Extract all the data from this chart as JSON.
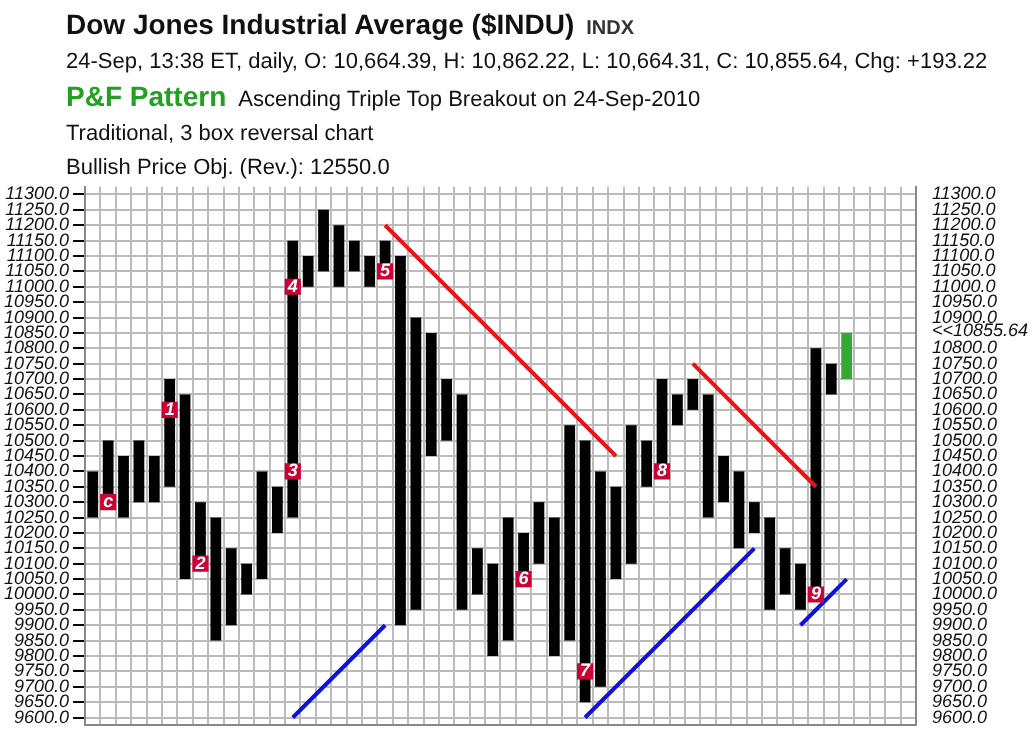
{
  "chart_data": {
    "type": "bar",
    "title": "Dow Jones Industrial Average ($INDU)",
    "subtitle": "24-Sep, 13:38 ET, daily, O: 10,664.39, H: 10,862.22, L: 10,664.31, C: 10,855.64, Chg: +193.22",
    "annotations": [
      "INDX",
      "P&F Pattern",
      "Ascending Triple Top Breakout on 24-Sep-2010",
      "Traditional, 3 box reversal chart",
      "Bullish Price Obj. (Rev.): 12550.0"
    ],
    "categories": [
      null,
      null,
      null,
      null,
      null,
      null,
      null,
      null,
      null,
      null,
      null,
      null,
      null,
      null,
      null,
      null,
      null,
      null,
      null,
      null,
      null,
      null,
      null,
      null,
      null,
      null,
      null,
      null,
      null,
      null,
      null,
      null,
      null,
      null,
      null,
      null,
      null,
      null,
      null,
      null,
      null,
      null,
      null,
      null,
      null,
      null,
      null,
      null,
      null,
      null,
      null,
      null,
      null,
      null
    ],
    "series": [
      {
        "color": "#000000",
        "colors": [
          "#000000",
          "#000000",
          "#000000",
          "#000000",
          "#000000",
          "#000000",
          "#000000",
          "#000000",
          "#000000",
          "#000000",
          "#000000",
          "#000000",
          "#000000",
          "#000000",
          "#000000",
          "#000000",
          "#000000",
          "#000000",
          "#000000",
          "#000000",
          "#000000",
          "#000000",
          "#000000",
          "#000000",
          "#000000",
          "#000000",
          "#000000",
          "#000000",
          "#000000",
          "#000000",
          "#000000",
          "#000000",
          "#000000",
          "#000000",
          "#000000",
          "#000000",
          "#000000",
          "#000000",
          "#000000",
          "#000000",
          "#000000",
          "#000000",
          "#000000",
          "#000000",
          "#000000",
          "#000000",
          "#000000",
          "#000000",
          "#000000",
          "#33aa33",
          null,
          null,
          null,
          null
        ],
        "base": [
          null,
          10300,
          null,
          10300,
          null,
          10350,
          null,
          10100,
          null,
          9900,
          null,
          10050,
          null,
          10250,
          null,
          11050,
          null,
          11050,
          null,
          11050,
          null,
          9950,
          null,
          10500,
          null,
          10000,
          null,
          9850,
          null,
          10100,
          null,
          9850,
          null,
          9700,
          null,
          10100,
          null,
          10400,
          null,
          10600,
          null,
          10300,
          null,
          10200,
          null,
          10000,
          null,
          10000,
          null,
          10700,
          null,
          null,
          null,
          null
        ],
        "values": [
          null,
          200,
          null,
          200,
          null,
          350,
          null,
          200,
          null,
          250,
          null,
          350,
          null,
          900,
          null,
          200,
          null,
          100,
          null,
          100,
          null,
          950,
          null,
          200,
          null,
          150,
          null,
          400,
          null,
          200,
          null,
          700,
          null,
          700,
          null,
          450,
          null,
          300,
          null,
          100,
          null,
          150,
          null,
          100,
          null,
          150,
          null,
          800,
          null,
          150,
          null,
          null,
          null,
          null
        ]
      },
      {
        "color": "#000000",
        "base": [
          10250,
          null,
          10250,
          null,
          10300,
          null,
          10050,
          null,
          9850,
          null,
          10000,
          null,
          10200,
          null,
          11000,
          null,
          11000,
          null,
          11000,
          null,
          9900,
          null,
          10450,
          null,
          9950,
          null,
          9800,
          null,
          10050,
          null,
          9800,
          null,
          9650,
          null,
          10050,
          null,
          10350,
          null,
          10550,
          null,
          10250,
          null,
          10150,
          null,
          9950,
          null,
          9950,
          null,
          10650,
          null,
          null,
          null,
          null,
          null
        ],
        "values": [
          150,
          null,
          200,
          null,
          150,
          null,
          600,
          null,
          400,
          null,
          100,
          null,
          150,
          null,
          100,
          null,
          200,
          null,
          100,
          null,
          1200,
          null,
          400,
          null,
          700,
          null,
          300,
          null,
          150,
          null,
          450,
          null,
          850,
          null,
          300,
          null,
          150,
          null,
          100,
          null,
          400,
          null,
          250,
          null,
          300,
          null,
          150,
          null,
          100,
          null,
          null,
          null,
          null,
          null
        ]
      },
      {
        "type": "line",
        "color": "#ee1111",
        "values": [
          null,
          null,
          null,
          null,
          null,
          null,
          null,
          null,
          null,
          null,
          null,
          null,
          null,
          null,
          null,
          null,
          null,
          null,
          null,
          11200,
          null,
          null,
          null,
          null,
          null,
          null,
          null,
          null,
          null,
          null,
          null,
          null,
          null,
          null,
          10450,
          null,
          null,
          null,
          null,
          null,
          null,
          null,
          null,
          null,
          null,
          null,
          null,
          null,
          null,
          null,
          null,
          null,
          null,
          null
        ]
      },
      {
        "type": "line",
        "color": "#ee1111",
        "values": [
          null,
          null,
          null,
          null,
          null,
          null,
          null,
          null,
          null,
          null,
          null,
          null,
          null,
          null,
          null,
          null,
          null,
          null,
          null,
          null,
          null,
          null,
          null,
          null,
          null,
          null,
          null,
          null,
          null,
          null,
          null,
          null,
          null,
          null,
          null,
          null,
          null,
          null,
          null,
          10750,
          null,
          null,
          null,
          null,
          null,
          null,
          null,
          10350,
          null,
          null,
          null,
          null,
          null,
          null
        ]
      },
      {
        "type": "line",
        "color": "#1111dd",
        "values": [
          null,
          null,
          null,
          null,
          null,
          null,
          null,
          null,
          null,
          null,
          null,
          null,
          null,
          9600,
          null,
          null,
          null,
          null,
          null,
          9900,
          null,
          null,
          null,
          null,
          null,
          null,
          null,
          null,
          null,
          null,
          null,
          null,
          null,
          null,
          null,
          null,
          null,
          null,
          null,
          null,
          null,
          null,
          null,
          null,
          null,
          null,
          null,
          null,
          null,
          null,
          null,
          null,
          null,
          null
        ]
      },
      {
        "type": "line",
        "color": "#1111dd",
        "values": [
          null,
          null,
          null,
          null,
          null,
          null,
          null,
          null,
          null,
          null,
          null,
          null,
          null,
          null,
          null,
          null,
          null,
          null,
          null,
          null,
          null,
          null,
          null,
          null,
          null,
          null,
          null,
          null,
          null,
          null,
          null,
          null,
          9600,
          null,
          null,
          null,
          null,
          null,
          null,
          null,
          null,
          null,
          null,
          10150,
          null,
          null,
          null,
          null,
          null,
          null,
          null,
          null,
          null,
          null
        ]
      },
      {
        "type": "line",
        "color": "#1111dd",
        "values": [
          null,
          null,
          null,
          null,
          null,
          null,
          null,
          null,
          null,
          null,
          null,
          null,
          null,
          null,
          null,
          null,
          null,
          null,
          null,
          null,
          null,
          null,
          null,
          null,
          null,
          null,
          null,
          null,
          null,
          null,
          null,
          null,
          null,
          null,
          null,
          null,
          null,
          null,
          null,
          null,
          null,
          null,
          null,
          null,
          null,
          null,
          9900,
          null,
          null,
          10050,
          null,
          null,
          null,
          null
        ]
      },
      {
        "type": "scatter",
        "name": "c",
        "color": "#cc0033",
        "values": [
          null,
          10300,
          null,
          null,
          null,
          null,
          null,
          null,
          null,
          null,
          null,
          null,
          null,
          null,
          null,
          null,
          null,
          null,
          null,
          null,
          null,
          null,
          null,
          null,
          null,
          null,
          null,
          null,
          null,
          null,
          null,
          null,
          null,
          null,
          null,
          null,
          null,
          null,
          null,
          null,
          null,
          null,
          null,
          null,
          null,
          null,
          null,
          null,
          null,
          null,
          null,
          null,
          null,
          null
        ]
      },
      {
        "type": "scatter",
        "name": "1",
        "color": "#cc0033",
        "values": [
          null,
          null,
          null,
          null,
          null,
          10600,
          null,
          null,
          null,
          null,
          null,
          null,
          null,
          null,
          null,
          null,
          null,
          null,
          null,
          null,
          null,
          null,
          null,
          null,
          null,
          null,
          null,
          null,
          null,
          null,
          null,
          null,
          null,
          null,
          null,
          null,
          null,
          null,
          null,
          null,
          null,
          null,
          null,
          null,
          null,
          null,
          null,
          null,
          null,
          null,
          null,
          null,
          null,
          null
        ]
      },
      {
        "type": "scatter",
        "name": "2",
        "color": "#cc0033",
        "values": [
          null,
          null,
          null,
          null,
          null,
          null,
          null,
          10100,
          null,
          null,
          null,
          null,
          null,
          null,
          null,
          null,
          null,
          null,
          null,
          null,
          null,
          null,
          null,
          null,
          null,
          null,
          null,
          null,
          null,
          null,
          null,
          null,
          null,
          null,
          null,
          null,
          null,
          null,
          null,
          null,
          null,
          null,
          null,
          null,
          null,
          null,
          null,
          null,
          null,
          null,
          null,
          null,
          null,
          null
        ]
      },
      {
        "type": "scatter",
        "name": "3",
        "color": "#cc0033",
        "values": [
          null,
          null,
          null,
          null,
          null,
          null,
          null,
          null,
          null,
          null,
          null,
          null,
          null,
          10400,
          null,
          null,
          null,
          null,
          null,
          null,
          null,
          null,
          null,
          null,
          null,
          null,
          null,
          null,
          null,
          null,
          null,
          null,
          null,
          null,
          null,
          null,
          null,
          null,
          null,
          null,
          null,
          null,
          null,
          null,
          null,
          null,
          null,
          null,
          null,
          null,
          null,
          null,
          null,
          null
        ]
      },
      {
        "type": "scatter",
        "name": "4",
        "color": "#cc0033",
        "values": [
          null,
          null,
          null,
          null,
          null,
          null,
          null,
          null,
          null,
          null,
          null,
          null,
          null,
          11000,
          null,
          null,
          null,
          null,
          null,
          null,
          null,
          null,
          null,
          null,
          null,
          null,
          null,
          null,
          null,
          null,
          null,
          null,
          null,
          null,
          null,
          null,
          null,
          null,
          null,
          null,
          null,
          null,
          null,
          null,
          null,
          null,
          null,
          null,
          null,
          null,
          null,
          null,
          null,
          null
        ]
      },
      {
        "type": "scatter",
        "name": "5",
        "color": "#cc0033",
        "values": [
          null,
          null,
          null,
          null,
          null,
          null,
          null,
          null,
          null,
          null,
          null,
          null,
          null,
          null,
          null,
          null,
          null,
          null,
          null,
          11050,
          null,
          null,
          null,
          null,
          null,
          null,
          null,
          null,
          null,
          null,
          null,
          null,
          null,
          null,
          null,
          null,
          null,
          null,
          null,
          null,
          null,
          null,
          null,
          null,
          null,
          null,
          null,
          null,
          null,
          null,
          null,
          null,
          null,
          null
        ]
      },
      {
        "type": "scatter",
        "name": "6",
        "color": "#cc0033",
        "values": [
          null,
          null,
          null,
          null,
          null,
          null,
          null,
          null,
          null,
          null,
          null,
          null,
          null,
          null,
          null,
          null,
          null,
          null,
          null,
          null,
          null,
          null,
          null,
          null,
          null,
          null,
          null,
          null,
          10050,
          null,
          null,
          null,
          null,
          null,
          null,
          null,
          null,
          null,
          null,
          null,
          null,
          null,
          null,
          null,
          null,
          null,
          null,
          null,
          null,
          null,
          null,
          null,
          null,
          null
        ]
      },
      {
        "type": "scatter",
        "name": "7",
        "color": "#cc0033",
        "values": [
          null,
          null,
          null,
          null,
          null,
          null,
          null,
          null,
          null,
          null,
          null,
          null,
          null,
          null,
          null,
          null,
          null,
          null,
          null,
          null,
          null,
          null,
          null,
          null,
          null,
          null,
          null,
          null,
          null,
          null,
          null,
          null,
          9750,
          null,
          null,
          null,
          null,
          null,
          null,
          null,
          null,
          null,
          null,
          null,
          null,
          null,
          null,
          null,
          null,
          null,
          null,
          null,
          null,
          null
        ]
      },
      {
        "type": "scatter",
        "name": "8",
        "color": "#cc0033",
        "values": [
          null,
          null,
          null,
          null,
          null,
          null,
          null,
          null,
          null,
          null,
          null,
          null,
          null,
          null,
          null,
          null,
          null,
          null,
          null,
          null,
          null,
          null,
          null,
          null,
          null,
          null,
          null,
          null,
          null,
          null,
          null,
          null,
          null,
          null,
          null,
          null,
          null,
          10400,
          null,
          null,
          null,
          null,
          null,
          null,
          null,
          null,
          null,
          null,
          null,
          null,
          null,
          null,
          null,
          null
        ]
      },
      {
        "type": "scatter",
        "name": "9",
        "color": "#cc0033",
        "values": [
          null,
          null,
          null,
          null,
          null,
          null,
          null,
          null,
          null,
          null,
          null,
          null,
          null,
          null,
          null,
          null,
          null,
          null,
          null,
          null,
          null,
          null,
          null,
          null,
          null,
          null,
          null,
          null,
          null,
          null,
          null,
          null,
          null,
          null,
          null,
          null,
          null,
          null,
          null,
          null,
          null,
          null,
          null,
          null,
          null,
          null,
          null,
          10000,
          null,
          null,
          null,
          null,
          null,
          null
        ]
      }
    ],
    "grid": true,
    "tick_labels": "y",
    "ylim": [
      9575,
      11325
    ],
    "yticks": [
      {
        "value": 9600,
        "label": "9600.0"
      },
      {
        "value": 9650,
        "label": "9650.0"
      },
      {
        "value": 9700,
        "label": "9700.0"
      },
      {
        "value": 9750,
        "label": "9750.0"
      },
      {
        "value": 9800,
        "label": "9800.0"
      },
      {
        "value": 9850,
        "label": "9850.0"
      },
      {
        "value": 9900,
        "label": "9900.0"
      },
      {
        "value": 9950,
        "label": "9950.0"
      },
      {
        "value": 10000,
        "label": "10000.0"
      },
      {
        "value": 10050,
        "label": "10050.0"
      },
      {
        "value": 10100,
        "label": "10100.0"
      },
      {
        "value": 10150,
        "label": "10150.0"
      },
      {
        "value": 10200,
        "label": "10200.0"
      },
      {
        "value": 10250,
        "label": "10250.0"
      },
      {
        "value": 10300,
        "label": "10300.0"
      },
      {
        "value": 10350,
        "label": "10350.0"
      },
      {
        "value": 10400,
        "label": "10400.0"
      },
      {
        "value": 10450,
        "label": "10450.0"
      },
      {
        "value": 10500,
        "label": "10500.0"
      },
      {
        "value": 10550,
        "label": "10550.0"
      },
      {
        "value": 10600,
        "label": "10600.0"
      },
      {
        "value": 10650,
        "label": "10650.0"
      },
      {
        "value": 10700,
        "label": "10700.0"
      },
      {
        "value": 10750,
        "label": "10750.0"
      },
      {
        "value": 10800,
        "label": "10800.0"
      },
      {
        "value": 10850,
        "label": "10850.0"
      },
      {
        "value": 10900,
        "label": "10900.0"
      },
      {
        "value": 10950,
        "label": "10950.0"
      },
      {
        "value": 11000,
        "label": "11000.0"
      },
      {
        "value": 11050,
        "label": "11050.0"
      },
      {
        "value": 11100,
        "label": "11100.0"
      },
      {
        "value": 11150,
        "label": "11150.0"
      },
      {
        "value": 11200,
        "label": "11200.0"
      },
      {
        "value": 11250,
        "label": "11250.0"
      },
      {
        "value": 11300,
        "label": "11300.0"
      }
    ],
    "y2lim": [
      9575,
      11325
    ],
    "y2ticks": [
      {
        "value": 9600,
        "label": "9600.0"
      },
      {
        "value": 9650,
        "label": "9650.0"
      },
      {
        "value": 9700,
        "label": "9700.0"
      },
      {
        "value": 9750,
        "label": "9750.0"
      },
      {
        "value": 9800,
        "label": "9800.0"
      },
      {
        "value": 9850,
        "label": "9850.0"
      },
      {
        "value": 9900,
        "label": "9900.0"
      },
      {
        "value": 9950,
        "label": "9950.0"
      },
      {
        "value": 10000,
        "label": "10000.0"
      },
      {
        "value": 10050,
        "label": "10050.0"
      },
      {
        "value": 10100,
        "label": "10100.0"
      },
      {
        "value": 10150,
        "label": "10150.0"
      },
      {
        "value": 10200,
        "label": "10200.0"
      },
      {
        "value": 10250,
        "label": "10250.0"
      },
      {
        "value": 10300,
        "label": "10300.0"
      },
      {
        "value": 10350,
        "label": "10350.0"
      },
      {
        "value": 10400,
        "label": "10400.0"
      },
      {
        "value": 10450,
        "label": "10450.0"
      },
      {
        "value": 10500,
        "label": "10500.0"
      },
      {
        "value": 10550,
        "label": "10550.0"
      },
      {
        "value": 10600,
        "label": "10600.0"
      },
      {
        "value": 10650,
        "label": "10650.0"
      },
      {
        "value": 10700,
        "label": "10700.0"
      },
      {
        "value": 10750,
        "label": "10750.0"
      },
      {
        "value": 10800,
        "label": "10800.0"
      },
      {
        "value": 10855.64,
        "label": "<<10855.64"
      },
      {
        "value": 10900,
        "label": "10900.0"
      },
      {
        "value": 10950,
        "label": "10950.0"
      },
      {
        "value": 11000,
        "label": "11000.0"
      },
      {
        "value": 11050,
        "label": "11050.0"
      },
      {
        "value": 11100,
        "label": "11100.0"
      },
      {
        "value": 11150,
        "label": "11150.0"
      },
      {
        "value": 11200,
        "label": "11200.0"
      },
      {
        "value": 11250,
        "label": "11250.0"
      },
      {
        "value": 11300,
        "label": "11300.0"
      }
    ]
  }
}
